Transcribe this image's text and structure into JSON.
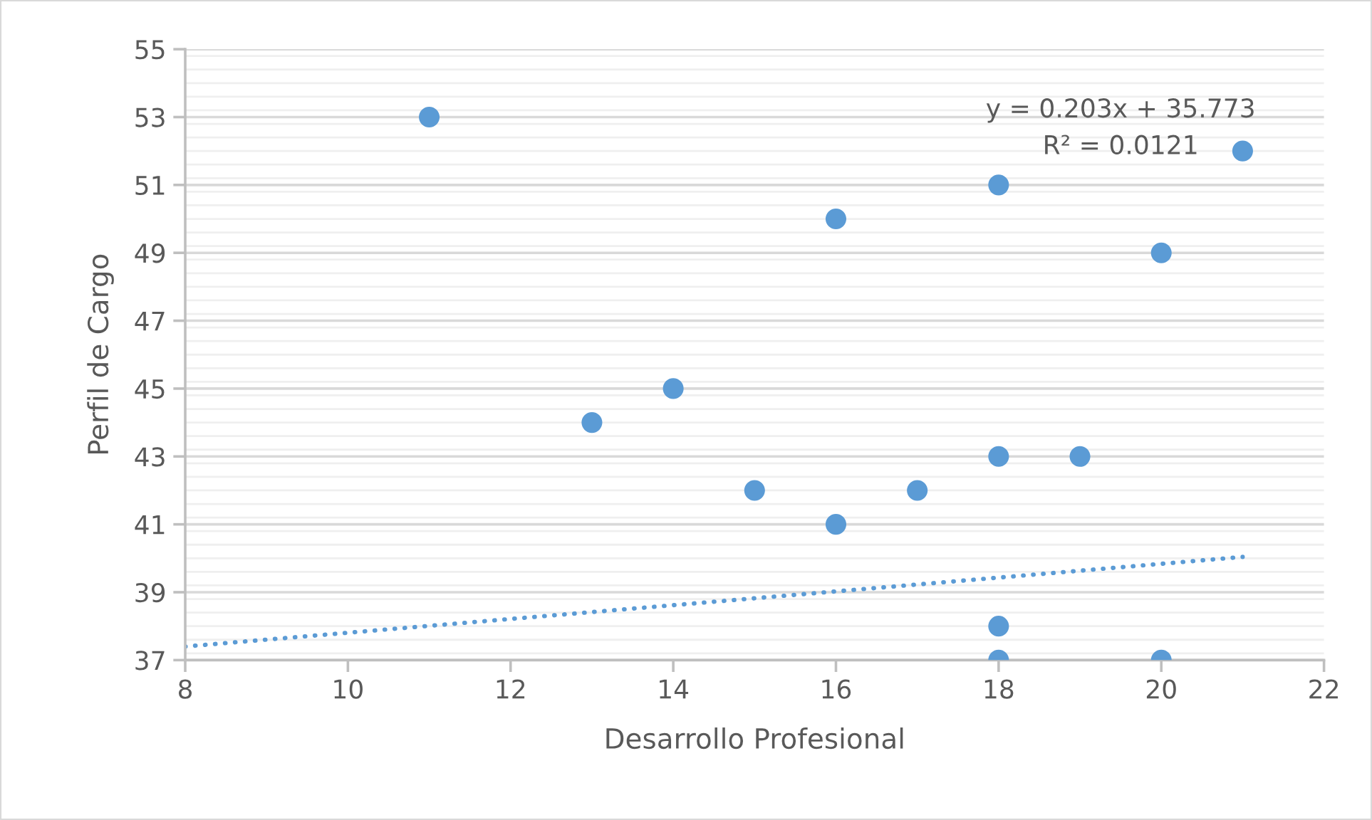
{
  "chart_data": {
    "type": "scatter",
    "xlabel": "Desarrollo Profesional",
    "ylabel": "Perfil de Cargo",
    "series": [
      {
        "color": "#5b9bd5",
        "marker": "circle",
        "x": [
          11,
          13,
          14,
          15,
          16,
          16,
          17,
          18,
          18,
          18,
          18,
          19,
          20,
          20,
          21
        ],
        "values": [
          53,
          44,
          45,
          42,
          50,
          41,
          42,
          51,
          43,
          38,
          37,
          43,
          49,
          37,
          52
        ]
      },
      {
        "type": "line",
        "color": "#5b9bd5",
        "line_style": "dotted",
        "x": [
          8,
          21
        ],
        "values": [
          37.4,
          40.04
        ]
      }
    ],
    "annotations": [
      "y = 0.203x + 35.773",
      "R² = 0.0121"
    ],
    "xlim": [
      8,
      22
    ],
    "xticks": [
      8,
      10,
      12,
      14,
      16,
      18,
      20,
      22
    ],
    "ylim": [
      37,
      55
    ],
    "yticks": [
      37,
      39,
      41,
      43,
      45,
      47,
      49,
      51,
      53,
      55
    ],
    "grid": "y",
    "legend": false
  }
}
